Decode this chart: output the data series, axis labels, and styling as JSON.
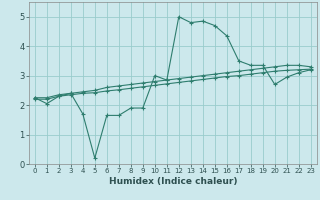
{
  "title": "",
  "xlabel": "Humidex (Indice chaleur)",
  "xlim": [
    -0.5,
    23.5
  ],
  "ylim": [
    0,
    5.5
  ],
  "xticks": [
    0,
    1,
    2,
    3,
    4,
    5,
    6,
    7,
    8,
    9,
    10,
    11,
    12,
    13,
    14,
    15,
    16,
    17,
    18,
    19,
    20,
    21,
    22,
    23
  ],
  "yticks": [
    0,
    1,
    2,
    3,
    4,
    5
  ],
  "bg_color": "#cce8ec",
  "grid_color": "#99cccc",
  "line_color": "#2e7d6e",
  "line1_x": [
    0,
    1,
    2,
    3,
    4,
    5,
    6,
    7,
    8,
    9,
    10,
    11,
    12,
    13,
    14,
    15,
    16,
    17,
    18,
    19,
    20,
    21,
    22,
    23
  ],
  "line1_y": [
    2.25,
    2.05,
    2.3,
    2.4,
    1.7,
    0.2,
    1.65,
    1.65,
    1.9,
    1.9,
    3.0,
    2.85,
    5.0,
    4.8,
    4.85,
    4.7,
    4.35,
    3.5,
    3.35,
    3.35,
    2.7,
    2.95,
    3.1,
    3.2
  ],
  "line2_x": [
    0,
    1,
    2,
    3,
    4,
    5,
    6,
    7,
    8,
    9,
    10,
    11,
    12,
    13,
    14,
    15,
    16,
    17,
    18,
    19,
    20,
    21,
    22,
    23
  ],
  "line2_y": [
    2.25,
    2.25,
    2.35,
    2.4,
    2.45,
    2.5,
    2.6,
    2.65,
    2.7,
    2.75,
    2.8,
    2.85,
    2.9,
    2.95,
    3.0,
    3.05,
    3.1,
    3.15,
    3.2,
    3.25,
    3.3,
    3.35,
    3.35,
    3.3
  ],
  "line3_x": [
    0,
    1,
    2,
    3,
    4,
    5,
    6,
    7,
    8,
    9,
    10,
    11,
    12,
    13,
    14,
    15,
    16,
    17,
    18,
    19,
    20,
    21,
    22,
    23
  ],
  "line3_y": [
    2.2,
    2.2,
    2.3,
    2.35,
    2.4,
    2.42,
    2.48,
    2.52,
    2.57,
    2.62,
    2.67,
    2.72,
    2.77,
    2.82,
    2.87,
    2.92,
    2.97,
    3.0,
    3.05,
    3.1,
    3.15,
    3.18,
    3.2,
    3.22
  ]
}
